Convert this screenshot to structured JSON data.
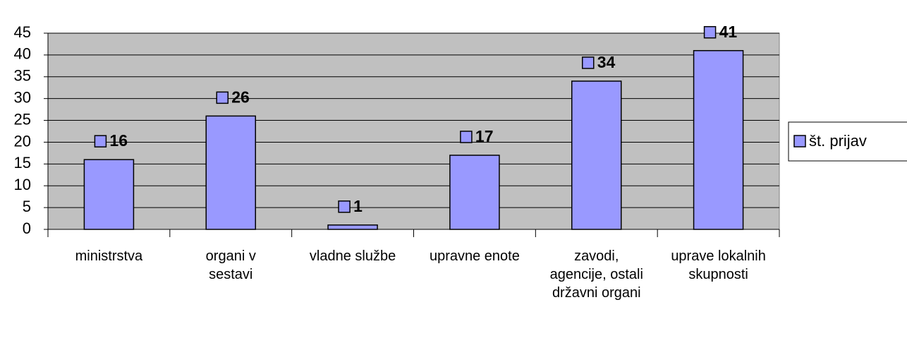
{
  "chart_data": {
    "type": "bar",
    "categories": [
      "ministrstva",
      "organi v sestavi",
      "vladne službe",
      "upravne enote",
      "zavodi, agencije, ostali državni organi",
      "uprave lokalnih skupnosti"
    ],
    "series": [
      {
        "name": "št. prijav",
        "color": "#9999ff",
        "values": [
          16,
          26,
          1,
          17,
          34,
          41
        ]
      }
    ],
    "ylim": [
      0,
      45
    ],
    "yticks": [
      0,
      5,
      10,
      15,
      20,
      25,
      30,
      35,
      40,
      45
    ],
    "grid": true,
    "legend": "right",
    "background": "#c0c0c0"
  }
}
